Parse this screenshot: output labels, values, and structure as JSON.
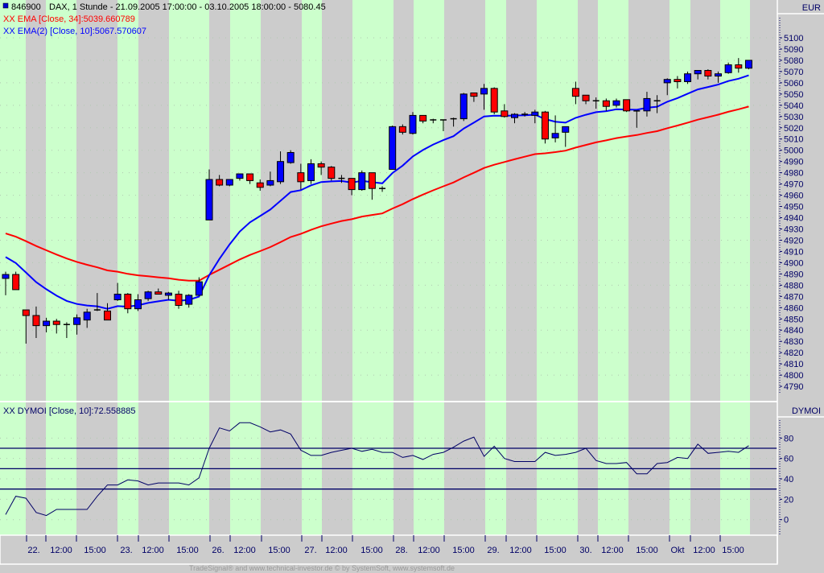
{
  "header": {
    "symbol": "846900",
    "title": "DAX, 1 Stunde - 21.09.2005 17:00:00 - 03.10.2005 18:00:00 - 5080.45",
    "ema34_label": "XX EMA [Close, 34]:5039.660789",
    "ema10_label": "XX EMA(2) [Close, 10]:5067.570607",
    "indicator_label": "XX DYMOI [Close, 10]:72.558885"
  },
  "axes": {
    "price_unit": "EUR",
    "indicator_unit": "DYMOI",
    "price_ticks": [
      "5100",
      "5090",
      "5080",
      "5070",
      "5060",
      "5050",
      "5040",
      "5030",
      "5020",
      "5010",
      "5000",
      "4990",
      "4980",
      "4970",
      "4960",
      "4950",
      "4940",
      "4930",
      "4920",
      "4910",
      "4900",
      "4890",
      "4880",
      "4870",
      "4860",
      "4850",
      "4840",
      "4830",
      "4820",
      "4810",
      "4800",
      "4790"
    ],
    "indicator_ticks": [
      "80",
      "60",
      "40",
      "20",
      "0"
    ],
    "time_labels": [
      "22.",
      "12:00",
      "15:00",
      "23.",
      "12:00",
      "15:00",
      "26.",
      "12:00",
      "15:00",
      "27.",
      "12:00",
      "15:00",
      "28.",
      "12:00",
      "15:00",
      "29.",
      "12:00",
      "15:00",
      "30.",
      "12:00",
      "15:00",
      "Okt",
      "12:00",
      "15:00"
    ]
  },
  "footer": "TradeSignal® and www.technical-investor.de © by SystemSoft, www.systemsoft.de",
  "colors": {
    "up": "#0000ff",
    "down": "#ff0000",
    "ema34": "#ff0000",
    "ema10": "#0000ff",
    "indicator": "#000066",
    "session": "#ccffcc",
    "off": "#cccccc"
  },
  "chart_data": [
    {
      "type": "candlestick",
      "title": "846900 DAX, 1 Stunde",
      "ylim": [
        4780,
        5110
      ],
      "ohlc": [
        [
          4886,
          4892,
          4871,
          4889.5
        ],
        [
          4889.5,
          4892,
          4876,
          4876
        ],
        [
          4858,
          4858,
          4828,
          4853
        ],
        [
          4853,
          4861,
          4833,
          4844
        ],
        [
          4844,
          4851,
          4838,
          4848
        ],
        [
          4848,
          4850,
          4837,
          4845
        ],
        [
          4845,
          4847,
          4833,
          4845
        ],
        [
          4845,
          4854,
          4836,
          4851
        ],
        [
          4849,
          4859,
          4842,
          4856
        ],
        [
          4857,
          4873,
          4857,
          4858
        ],
        [
          4857,
          4864,
          4849,
          4849
        ],
        [
          4867,
          4882,
          4866,
          4872
        ],
        [
          4872,
          4873,
          4855,
          4859
        ],
        [
          4859,
          4872,
          4857,
          4867
        ],
        [
          4868,
          4875,
          4866,
          4874
        ],
        [
          4874,
          4877,
          4872,
          4872
        ],
        [
          4871,
          4874,
          4867,
          4873
        ],
        [
          4872,
          4875,
          4859,
          4862
        ],
        [
          4863,
          4872,
          4860,
          4871
        ],
        [
          4871,
          4887,
          4871,
          4883
        ],
        [
          4938,
          4983,
          4938,
          4974
        ],
        [
          4974,
          4978,
          4968,
          4969
        ],
        [
          4969,
          4974,
          4968,
          4974
        ],
        [
          4975,
          4979,
          4973,
          4979
        ],
        [
          4979,
          4979,
          4970,
          4973
        ],
        [
          4971,
          4974,
          4964,
          4967
        ],
        [
          4969,
          4981,
          4968,
          4973
        ],
        [
          4972,
          4999,
          4970,
          4990
        ],
        [
          4989,
          5000,
          4988,
          4998
        ],
        [
          4980,
          4988,
          4965,
          4972
        ],
        [
          4973,
          4992,
          4970,
          4988
        ],
        [
          4988,
          4990,
          4978,
          4985
        ],
        [
          4985,
          4986,
          4973,
          4975
        ],
        [
          4975,
          4978,
          4971,
          4974
        ],
        [
          4975,
          4975,
          4960,
          4965
        ],
        [
          4965,
          4982,
          4964,
          4980
        ],
        [
          4980,
          4980,
          4956,
          4966
        ],
        [
          4966,
          4968,
          4963,
          4966
        ],
        [
          4983,
          5022,
          4983,
          5021
        ],
        [
          5021,
          5023,
          5014,
          5016
        ],
        [
          5015,
          5034,
          5014,
          5031
        ],
        [
          5031,
          5031,
          5024,
          5026
        ],
        [
          5027,
          5028,
          5024,
          5027
        ],
        [
          5027,
          5027,
          5017,
          5027
        ],
        [
          5028,
          5029,
          5021,
          5028
        ],
        [
          5028,
          5051,
          5026,
          5050
        ],
        [
          5051,
          5051,
          5043,
          5048
        ],
        [
          5050,
          5059,
          5036,
          5055
        ],
        [
          5055,
          5056,
          5032,
          5034
        ],
        [
          5035,
          5041,
          5029,
          5030
        ],
        [
          5029,
          5033,
          5024,
          5032
        ],
        [
          5032,
          5034,
          5030,
          5032
        ],
        [
          5031,
          5036,
          5024,
          5034
        ],
        [
          5034,
          5035,
          5006,
          5010
        ],
        [
          5011,
          5031,
          5007,
          5015
        ],
        [
          5016,
          5021,
          5003,
          5021
        ],
        [
          5055,
          5061,
          5041,
          5048
        ],
        [
          5049,
          5049,
          5041,
          5044
        ],
        [
          5044,
          5047,
          5037,
          5044
        ],
        [
          5044,
          5046,
          5035,
          5039
        ],
        [
          5040,
          5046,
          5038,
          5044
        ],
        [
          5045,
          5045,
          5034,
          5035
        ],
        [
          5035,
          5035,
          5020,
          5035
        ],
        [
          5035,
          5052,
          5030,
          5046
        ],
        [
          5044,
          5049,
          5033,
          5043
        ],
        [
          5060,
          5064,
          5049,
          5063
        ],
        [
          5063,
          5066,
          5055,
          5061
        ],
        [
          5061,
          5070,
          5059,
          5068
        ],
        [
          5068,
          5071,
          5063,
          5071
        ],
        [
          5071,
          5072,
          5063,
          5066
        ],
        [
          5066,
          5070,
          5060,
          5068
        ],
        [
          5069,
          5078,
          5068,
          5076
        ],
        [
          5076,
          5082,
          5069,
          5073
        ],
        [
          5073,
          5080,
          5072,
          5080
        ]
      ],
      "ema34": {
        "period": 34,
        "start": 4926,
        "last": 5039.660789
      },
      "ema10": {
        "period": 10,
        "start": 4905,
        "last": 5067.570607
      }
    },
    {
      "type": "line",
      "title": "DYMOI [Close, 10]",
      "ylim": [
        -10,
        100
      ],
      "levels": [
        70,
        50,
        30
      ],
      "values": [
        5,
        23,
        21,
        7,
        4,
        10,
        10,
        10,
        10,
        23,
        34,
        34,
        39,
        38,
        34,
        36,
        36,
        36,
        34,
        41,
        70,
        90,
        87,
        95,
        95,
        91,
        86,
        88,
        84,
        68,
        63,
        63,
        66,
        68,
        70,
        67,
        69,
        66,
        66,
        61,
        63,
        59,
        64,
        66,
        71,
        77,
        81,
        62,
        72,
        60,
        57,
        57,
        57,
        66,
        63,
        64,
        66,
        70,
        58,
        55,
        55,
        56,
        45,
        45,
        55,
        56,
        61,
        60,
        74,
        65,
        66,
        67,
        66,
        72.558885
      ]
    }
  ]
}
